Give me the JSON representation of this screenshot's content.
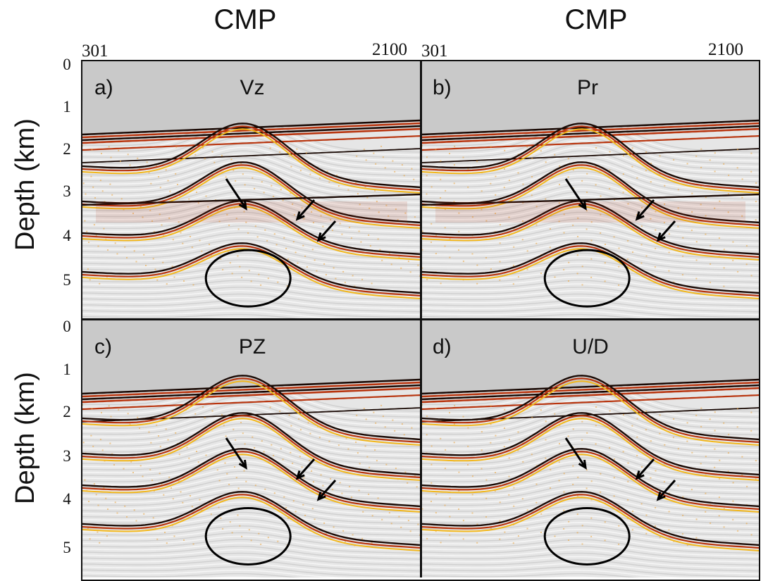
{
  "figure": {
    "column_titles": [
      "CMP",
      "CMP"
    ],
    "cmp_tick_labels": {
      "left": [
        "301",
        "2100"
      ],
      "right": [
        "301",
        "2100"
      ]
    },
    "y_axis_label": "Depth (km)",
    "depth_ticks_top": [
      "0",
      "1",
      "2",
      "3",
      "4",
      "5"
    ],
    "depth_ticks_bottom": [
      "0",
      "1",
      "2",
      "3",
      "4",
      "5"
    ],
    "panels": [
      {
        "letter": "a)",
        "name": "Vz"
      },
      {
        "letter": "b)",
        "name": "Pr"
      },
      {
        "letter": "c)",
        "name": "PZ"
      },
      {
        "letter": "d)",
        "name": "U/D"
      }
    ],
    "colors": {
      "water": "#c9c9c9",
      "horizon_dark": "#1a0a05",
      "horizon_red": "#b8350f",
      "horizon_yellow": "#f2b71c",
      "noise": "#e9a23a"
    },
    "icons": [
      "arrow-icon",
      "ellipse-marker"
    ]
  }
}
